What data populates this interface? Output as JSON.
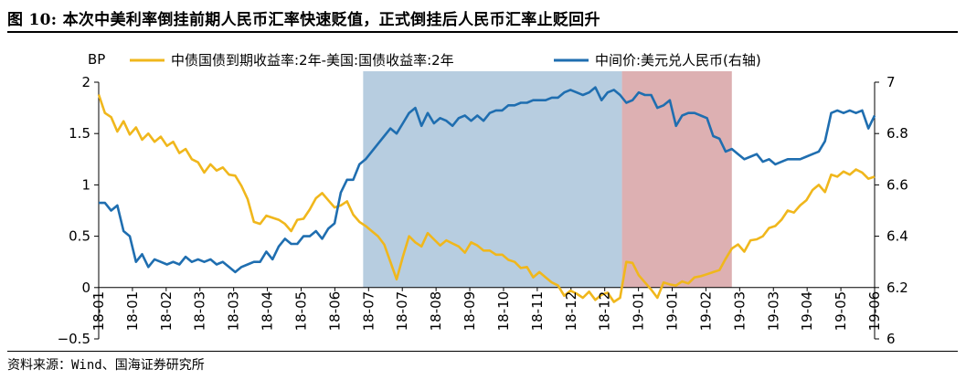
{
  "title": "图 10:   本次中美利率倒挂前期人民币汇率快速贬值，正式倒挂后人民币汇率止贬回升",
  "source": "资料来源：Wind、国海证券研究所",
  "chart_data": {
    "type": "line",
    "left_axis_unit": "BP",
    "x_ticks": [
      "18-01",
      "18-01",
      "18-02",
      "18-03",
      "18-03",
      "18-04",
      "18-05",
      "18-06",
      "18-07",
      "18-07",
      "18-08",
      "18-09",
      "18-10",
      "18-11",
      "18-12",
      "18-12",
      "19-01",
      "19-01",
      "19-02",
      "19-03",
      "19-03",
      "19-04",
      "19-05",
      "19-06"
    ],
    "x_range": [
      0,
      125
    ],
    "y_left": {
      "min": -0.5,
      "max": 2,
      "ticks": [
        "2",
        "1.5",
        "1",
        "0.5",
        "0",
        "−0.5"
      ]
    },
    "y_right": {
      "min": 6,
      "max": 7,
      "ticks": [
        "7",
        "6.8",
        "6.6",
        "6.4",
        "6.2",
        "6"
      ]
    },
    "shaded_regions": [
      {
        "from": 42.6,
        "to": 84.3,
        "color": "#b7cde0"
      },
      {
        "from": 84.3,
        "to": 102.0,
        "color": "#ddb0b2"
      }
    ],
    "series": [
      {
        "name": "中债国债到期收益率:2年-美国:国债收益率:2年",
        "axis": "left",
        "color": "#f0b71c",
        "points": [
          [
            0,
            1.88
          ],
          [
            1,
            1.7
          ],
          [
            2,
            1.66
          ],
          [
            3,
            1.52
          ],
          [
            4,
            1.62
          ],
          [
            5,
            1.49
          ],
          [
            6,
            1.56
          ],
          [
            7,
            1.44
          ],
          [
            8,
            1.5
          ],
          [
            9,
            1.42
          ],
          [
            10,
            1.47
          ],
          [
            11,
            1.38
          ],
          [
            12,
            1.42
          ],
          [
            13,
            1.31
          ],
          [
            14,
            1.35
          ],
          [
            15,
            1.25
          ],
          [
            16,
            1.22
          ],
          [
            17,
            1.12
          ],
          [
            18,
            1.2
          ],
          [
            19,
            1.14
          ],
          [
            20,
            1.17
          ],
          [
            21,
            1.1
          ],
          [
            22,
            1.09
          ],
          [
            23,
            0.99
          ],
          [
            24,
            0.86
          ],
          [
            25,
            0.64
          ],
          [
            26,
            0.62
          ],
          [
            27,
            0.7
          ],
          [
            28,
            0.68
          ],
          [
            29,
            0.66
          ],
          [
            30,
            0.62
          ],
          [
            31,
            0.55
          ],
          [
            32,
            0.66
          ],
          [
            33,
            0.67
          ],
          [
            34,
            0.76
          ],
          [
            35,
            0.87
          ],
          [
            36,
            0.92
          ],
          [
            37,
            0.85
          ],
          [
            38,
            0.78
          ],
          [
            39,
            0.8
          ],
          [
            40,
            0.84
          ],
          [
            41,
            0.71
          ],
          [
            42,
            0.64
          ],
          [
            43,
            0.6
          ],
          [
            44,
            0.55
          ],
          [
            45,
            0.5
          ],
          [
            46,
            0.42
          ],
          [
            47,
            0.25
          ],
          [
            48,
            0.08
          ],
          [
            49,
            0.3
          ],
          [
            50,
            0.5
          ],
          [
            51,
            0.44
          ],
          [
            52,
            0.4
          ],
          [
            53,
            0.53
          ],
          [
            54,
            0.47
          ],
          [
            55,
            0.41
          ],
          [
            56,
            0.46
          ],
          [
            57,
            0.43
          ],
          [
            58,
            0.4
          ],
          [
            59,
            0.34
          ],
          [
            60,
            0.44
          ],
          [
            61,
            0.41
          ],
          [
            62,
            0.36
          ],
          [
            63,
            0.36
          ],
          [
            64,
            0.32
          ],
          [
            65,
            0.32
          ],
          [
            66,
            0.27
          ],
          [
            67,
            0.25
          ],
          [
            68,
            0.19
          ],
          [
            69,
            0.2
          ],
          [
            70,
            0.1
          ],
          [
            71,
            0.15
          ],
          [
            72,
            0.1
          ],
          [
            73,
            0.05
          ],
          [
            74,
            0.02
          ],
          [
            75,
            -0.08
          ],
          [
            76,
            -0.03
          ],
          [
            77,
            -0.06
          ],
          [
            78,
            -0.1
          ],
          [
            79,
            -0.04
          ],
          [
            80,
            -0.12
          ],
          [
            81,
            -0.07
          ],
          [
            82,
            -0.05
          ],
          [
            83,
            -0.14
          ],
          [
            84,
            -0.1
          ],
          [
            85,
            0.25
          ],
          [
            86,
            0.24
          ],
          [
            87,
            0.12
          ],
          [
            88,
            0.05
          ],
          [
            89,
            -0.02
          ],
          [
            90,
            -0.1
          ],
          [
            91,
            0.05
          ],
          [
            92,
            0.03
          ],
          [
            93,
            0.02
          ],
          [
            94,
            0.06
          ],
          [
            95,
            0.04
          ],
          [
            96,
            0.1
          ],
          [
            97,
            0.11
          ],
          [
            98,
            0.13
          ],
          [
            99,
            0.15
          ],
          [
            100,
            0.17
          ],
          [
            101,
            0.28
          ],
          [
            102,
            0.38
          ],
          [
            103,
            0.42
          ],
          [
            104,
            0.35
          ],
          [
            105,
            0.46
          ],
          [
            106,
            0.47
          ],
          [
            107,
            0.5
          ],
          [
            108,
            0.58
          ],
          [
            109,
            0.6
          ],
          [
            110,
            0.66
          ],
          [
            111,
            0.75
          ],
          [
            112,
            0.73
          ],
          [
            113,
            0.8
          ],
          [
            114,
            0.85
          ],
          [
            115,
            0.95
          ],
          [
            116,
            1.0
          ],
          [
            117,
            0.93
          ],
          [
            118,
            1.1
          ],
          [
            119,
            1.08
          ],
          [
            120,
            1.13
          ],
          [
            121,
            1.1
          ],
          [
            122,
            1.15
          ],
          [
            123,
            1.12
          ],
          [
            124,
            1.06
          ],
          [
            125,
            1.08
          ]
        ]
      },
      {
        "name": "中间价:美元兑人民币(右轴)",
        "axis": "right",
        "color": "#1f6eb0",
        "points": [
          [
            0,
            6.53
          ],
          [
            1,
            6.53
          ],
          [
            2,
            6.5
          ],
          [
            3,
            6.52
          ],
          [
            4,
            6.42
          ],
          [
            5,
            6.4
          ],
          [
            6,
            6.3
          ],
          [
            7,
            6.33
          ],
          [
            8,
            6.28
          ],
          [
            9,
            6.31
          ],
          [
            10,
            6.3
          ],
          [
            11,
            6.29
          ],
          [
            12,
            6.3
          ],
          [
            13,
            6.29
          ],
          [
            14,
            6.32
          ],
          [
            15,
            6.3
          ],
          [
            16,
            6.31
          ],
          [
            17,
            6.3
          ],
          [
            18,
            6.31
          ],
          [
            19,
            6.29
          ],
          [
            20,
            6.3
          ],
          [
            21,
            6.28
          ],
          [
            22,
            6.26
          ],
          [
            23,
            6.28
          ],
          [
            24,
            6.29
          ],
          [
            25,
            6.3
          ],
          [
            26,
            6.3
          ],
          [
            27,
            6.34
          ],
          [
            28,
            6.31
          ],
          [
            29,
            6.36
          ],
          [
            30,
            6.39
          ],
          [
            31,
            6.37
          ],
          [
            32,
            6.37
          ],
          [
            33,
            6.4
          ],
          [
            34,
            6.4
          ],
          [
            35,
            6.42
          ],
          [
            36,
            6.39
          ],
          [
            37,
            6.43
          ],
          [
            38,
            6.45
          ],
          [
            39,
            6.57
          ],
          [
            40,
            6.62
          ],
          [
            41,
            6.62
          ],
          [
            42,
            6.68
          ],
          [
            43,
            6.7
          ],
          [
            44,
            6.73
          ],
          [
            45,
            6.76
          ],
          [
            46,
            6.79
          ],
          [
            47,
            6.82
          ],
          [
            48,
            6.8
          ],
          [
            49,
            6.84
          ],
          [
            50,
            6.88
          ],
          [
            51,
            6.9
          ],
          [
            52,
            6.83
          ],
          [
            53,
            6.88
          ],
          [
            54,
            6.84
          ],
          [
            55,
            6.86
          ],
          [
            56,
            6.85
          ],
          [
            57,
            6.83
          ],
          [
            58,
            6.86
          ],
          [
            59,
            6.87
          ],
          [
            60,
            6.85
          ],
          [
            61,
            6.87
          ],
          [
            62,
            6.85
          ],
          [
            63,
            6.88
          ],
          [
            64,
            6.89
          ],
          [
            65,
            6.89
          ],
          [
            66,
            6.91
          ],
          [
            67,
            6.91
          ],
          [
            68,
            6.92
          ],
          [
            69,
            6.92
          ],
          [
            70,
            6.93
          ],
          [
            71,
            6.93
          ],
          [
            72,
            6.93
          ],
          [
            73,
            6.94
          ],
          [
            74,
            6.94
          ],
          [
            75,
            6.96
          ],
          [
            76,
            6.97
          ],
          [
            77,
            6.96
          ],
          [
            78,
            6.95
          ],
          [
            79,
            6.96
          ],
          [
            80,
            6.98
          ],
          [
            81,
            6.93
          ],
          [
            82,
            6.96
          ],
          [
            83,
            6.97
          ],
          [
            84,
            6.95
          ],
          [
            85,
            6.92
          ],
          [
            86,
            6.93
          ],
          [
            87,
            6.96
          ],
          [
            88,
            6.95
          ],
          [
            89,
            6.95
          ],
          [
            90,
            6.9
          ],
          [
            91,
            6.91
          ],
          [
            92,
            6.93
          ],
          [
            93,
            6.83
          ],
          [
            94,
            6.87
          ],
          [
            95,
            6.88
          ],
          [
            96,
            6.88
          ],
          [
            97,
            6.87
          ],
          [
            98,
            6.86
          ],
          [
            99,
            6.79
          ],
          [
            100,
            6.78
          ],
          [
            101,
            6.73
          ],
          [
            102,
            6.74
          ],
          [
            103,
            6.72
          ],
          [
            104,
            6.7
          ],
          [
            105,
            6.71
          ],
          [
            106,
            6.72
          ],
          [
            107,
            6.69
          ],
          [
            108,
            6.7
          ],
          [
            109,
            6.68
          ],
          [
            110,
            6.69
          ],
          [
            111,
            6.7
          ],
          [
            112,
            6.7
          ],
          [
            113,
            6.7
          ],
          [
            114,
            6.71
          ],
          [
            115,
            6.72
          ],
          [
            116,
            6.73
          ],
          [
            117,
            6.77
          ],
          [
            118,
            6.88
          ],
          [
            119,
            6.89
          ],
          [
            120,
            6.88
          ],
          [
            121,
            6.89
          ],
          [
            122,
            6.88
          ],
          [
            123,
            6.89
          ],
          [
            124,
            6.82
          ],
          [
            125,
            6.87
          ]
        ]
      }
    ]
  }
}
